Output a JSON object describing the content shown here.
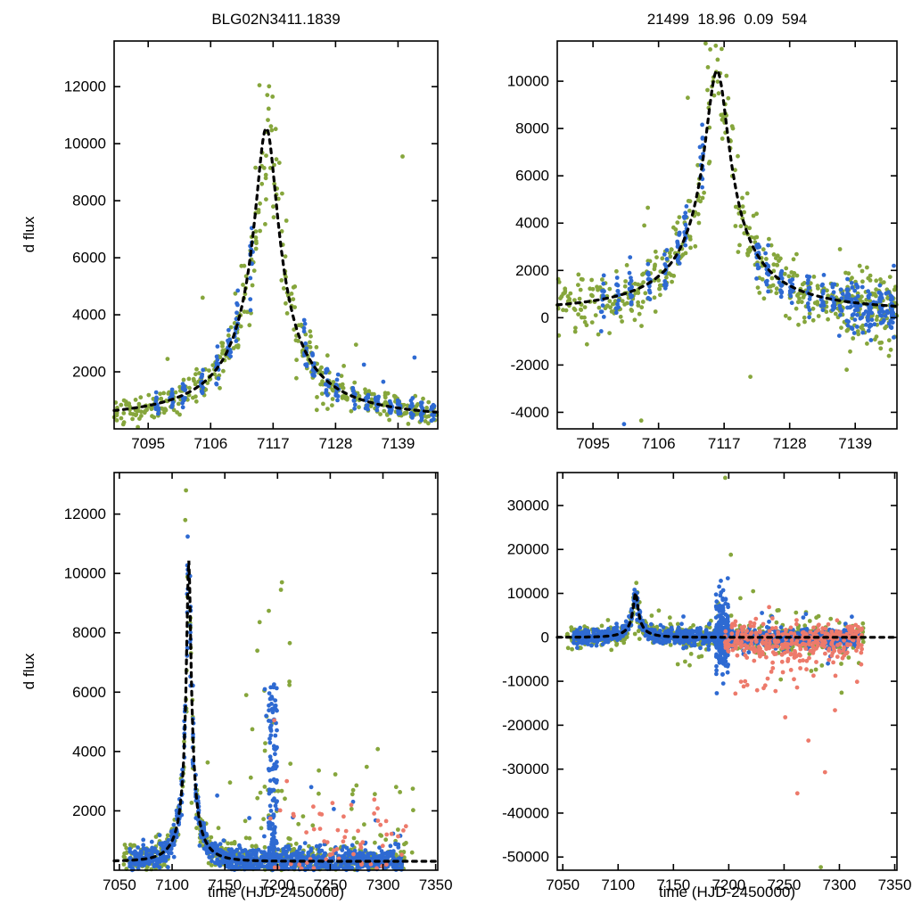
{
  "colors": {
    "green": "#86a63c",
    "blue": "#2e6ad2",
    "red": "#ed7a6b",
    "model": "#000000"
  },
  "chart_data": [
    {
      "id": "top-left",
      "type": "scatter",
      "title": "BLG02N3411.1839",
      "xlabel": "",
      "ylabel": "d flux",
      "xlim": [
        7089,
        7146
      ],
      "ylim": [
        0,
        13600
      ],
      "xticks": [
        7095,
        7106,
        7117,
        7128,
        7139
      ],
      "yticks": [
        2000,
        4000,
        6000,
        8000,
        10000,
        12000
      ],
      "grid": false,
      "legend": false,
      "model": {
        "t0": 7115.8,
        "tE": 23,
        "u0": 0.09,
        "fs": 1000,
        "baseline": 400,
        "show": true
      },
      "clusters": [
        {
          "color": "green",
          "mode": "model",
          "tmin": 7089,
          "tmax": 7146,
          "epochs": 55,
          "per": 7,
          "jt": 0.55,
          "rel": 0.13,
          "abs": 260,
          "seed": 101
        },
        {
          "color": "green",
          "mode": "model",
          "tmin": 7106,
          "tmax": 7126,
          "epochs": 11,
          "per": 3,
          "jt": 0.7,
          "rel": 0.28,
          "abs": 280,
          "seed": 102
        },
        {
          "color": "green",
          "mode": "points",
          "values": [
            [
              7114.6,
              12050
            ],
            [
              7116.9,
              11650
            ],
            [
              7139.8,
              9550
            ],
            [
              7104.6,
              4600
            ],
            [
              7131.6,
              2950
            ],
            [
              7098.4,
              2450
            ]
          ]
        },
        {
          "color": "blue",
          "mode": "model",
          "nights": [
            7096.6,
            7099.1,
            7101.3,
            7104.4,
            7107.2,
            7109.3,
            7110.5,
            7113.2,
            7122.7,
            7124.2,
            7126.5,
            7128.3,
            7131.2,
            7133.5,
            7135.3,
            7137.7,
            7139.2,
            7141.4,
            7143.3,
            7145.1
          ],
          "per": 13,
          "jt": 0.28,
          "rel": 0.11,
          "abs": 170,
          "seed": 103
        },
        {
          "color": "blue",
          "mode": "points",
          "values": [
            [
              7133.0,
              2250
            ],
            [
              7141.9,
              2500
            ],
            [
              7136.4,
              1650
            ]
          ]
        }
      ]
    },
    {
      "id": "top-right",
      "type": "scatter",
      "title": "21499  18.96  0.09  594",
      "xlabel": "",
      "ylabel": "",
      "xlim": [
        7089,
        7146
      ],
      "ylim": [
        -4700,
        11700
      ],
      "xticks": [
        7095,
        7106,
        7117,
        7128,
        7139
      ],
      "yticks": [
        -4000,
        -2000,
        0,
        2000,
        4000,
        6000,
        8000,
        10000
      ],
      "grid": false,
      "legend": false,
      "model": {
        "t0": 7115.8,
        "tE": 23,
        "u0": 0.09,
        "fs": 1000,
        "baseline": 300,
        "show": true
      },
      "clusters": [
        {
          "color": "green",
          "mode": "model",
          "tmin": 7089,
          "tmax": 7146,
          "epochs": 55,
          "per": 8,
          "jt": 0.55,
          "rel": 0.13,
          "abs": 620,
          "seed": 201
        },
        {
          "color": "green",
          "mode": "model",
          "tmin": 7089,
          "tmax": 7146,
          "epochs": 16,
          "per": 1,
          "jt": 0.5,
          "rel": 0.12,
          "abs": 1500,
          "seed": 202
        },
        {
          "color": "green",
          "mode": "flat",
          "tmin": 7135.5,
          "tmax": 7146,
          "epochs": 11,
          "per": 6,
          "jt": 0.5,
          "base": 250,
          "abs": 900,
          "seed": 203
        },
        {
          "color": "green",
          "mode": "points",
          "values": [
            [
              7103.1,
              -4350
            ],
            [
              7113.9,
              11600
            ],
            [
              7115.6,
              11500
            ],
            [
              7110.9,
              9300
            ],
            [
              7121.4,
              -2500
            ],
            [
              7104.2,
              4650
            ],
            [
              7103.6,
              3900
            ]
          ]
        },
        {
          "color": "blue",
          "mode": "model",
          "nights": [
            7096.6,
            7099.1,
            7101.3,
            7104.4,
            7107.2,
            7109.3,
            7110.5,
            7113.2,
            7122.7,
            7124.2,
            7126.5,
            7128.3,
            7131.2,
            7133.5,
            7135.3,
            7137.7,
            7139.2,
            7141.4,
            7143.3,
            7145.1
          ],
          "per": 14,
          "jt": 0.28,
          "rel": 0.12,
          "abs": 430,
          "seed": 204
        },
        {
          "color": "blue",
          "mode": "flat",
          "tmin": 7136,
          "tmax": 7146,
          "epochs": 9,
          "per": 8,
          "jt": 0.5,
          "base": 250,
          "abs": 600,
          "seed": 205
        },
        {
          "color": "blue",
          "mode": "points",
          "values": [
            [
              7100.2,
              -4500
            ]
          ]
        }
      ]
    },
    {
      "id": "bottom-left",
      "type": "scatter",
      "title": "",
      "xlabel": "time (HJD-2450000)",
      "ylabel": "d flux",
      "xlim": [
        7045,
        7352
      ],
      "ylim": [
        0,
        13400
      ],
      "xticks": [
        7050,
        7100,
        7150,
        7200,
        7250,
        7300,
        7350
      ],
      "yticks": [
        2000,
        4000,
        6000,
        8000,
        10000,
        12000
      ],
      "grid": false,
      "legend": false,
      "model": {
        "t0": 7115.8,
        "tE": 23,
        "u0": 0.09,
        "fs": 1000,
        "baseline": 300,
        "show": true
      },
      "clusters": [
        {
          "color": "green",
          "mode": "model",
          "tmin": 7053,
          "tmax": 7322,
          "epochs": 90,
          "per": 6,
          "jt": 0.7,
          "rel": 0.13,
          "abs": 300,
          "seed": 301
        },
        {
          "color": "green",
          "mode": "uniform",
          "tmin": 7118,
          "tmax": 7330,
          "n": 45,
          "ymin": 500,
          "ymax": 4200,
          "pow": 2.0,
          "seed": 302
        },
        {
          "color": "green",
          "mode": "uniform",
          "tmin": 7174,
          "tmax": 7214,
          "n": 26,
          "ymin": 800,
          "ymax": 9600,
          "pow": 2.2,
          "seed": 303
        },
        {
          "color": "green",
          "mode": "points",
          "values": [
            [
              7113.2,
              12800
            ],
            [
              7112.5,
              11800
            ],
            [
              7170.3,
              5900
            ],
            [
              7176.1,
              4750
            ],
            [
              7204.2,
              9700
            ],
            [
              7187.5,
              6050
            ]
          ]
        },
        {
          "color": "blue",
          "mode": "model",
          "tmin": 7060,
          "tmax": 7320,
          "step": 2.6,
          "per": 10,
          "jt": 0.45,
          "rel": 0.12,
          "abs": 210,
          "seed": 304
        },
        {
          "color": "blue",
          "mode": "uniform",
          "tmin": 7191.5,
          "tmax": 7199.5,
          "n": 150,
          "ymin": 60,
          "ymax": 6300,
          "pow": 1.7,
          "seed": 305
        },
        {
          "color": "blue",
          "mode": "uniform",
          "tmin": 7125,
          "tmax": 7320,
          "n": 28,
          "ymin": 500,
          "ymax": 3000,
          "pow": 1.8,
          "seed": 306
        },
        {
          "color": "blue",
          "mode": "points",
          "values": [
            [
              7187.9,
              6100
            ],
            [
              7189.3,
              5200
            ]
          ]
        },
        {
          "color": "red",
          "mode": "uniform",
          "tmin": 7193,
          "tmax": 7322,
          "n": 55,
          "ymin": 60,
          "ymax": 2400,
          "pow": 2.2,
          "seed": 307
        },
        {
          "color": "red",
          "mode": "points",
          "values": [
            [
              7196.9,
              5050
            ],
            [
              7208.8,
              3000
            ],
            [
              7240.0,
              1900
            ],
            [
              7270.0,
              2200
            ]
          ]
        }
      ]
    },
    {
      "id": "bottom-right",
      "type": "scatter",
      "title": "",
      "xlabel": "time (HJD-2450000)",
      "ylabel": "",
      "xlim": [
        7045,
        7352
      ],
      "ylim": [
        -53000,
        37500
      ],
      "xticks": [
        7050,
        7100,
        7150,
        7200,
        7250,
        7300,
        7350
      ],
      "yticks": [
        -50000,
        -40000,
        -30000,
        -20000,
        -10000,
        0,
        10000,
        20000,
        30000
      ],
      "grid": false,
      "legend": false,
      "model": {
        "t0": 7115.8,
        "tE": 23,
        "u0": 0.09,
        "fs": 1000,
        "baseline": 0,
        "show": true
      },
      "clusters": [
        {
          "color": "green",
          "mode": "model",
          "tmin": 7053,
          "tmax": 7322,
          "epochs": 90,
          "per": 6,
          "jt": 0.7,
          "rel": 0.2,
          "abs": 1500,
          "seed": 401
        },
        {
          "color": "green",
          "mode": "uniform",
          "tmin": 7115,
          "tmax": 7325,
          "n": 42,
          "ymin": -8000,
          "ymax": 8000,
          "pow": 1,
          "seed": 402
        },
        {
          "color": "green",
          "mode": "points",
          "values": [
            [
              7196.8,
              36300
            ],
            [
              7201.9,
              18800
            ],
            [
              7283.2,
              -52300
            ],
            [
              7210.5,
              8900
            ],
            [
              7302.0,
              -12600
            ],
            [
              7247.0,
              -9600
            ],
            [
              7222.0,
              10500
            ]
          ]
        },
        {
          "color": "blue",
          "mode": "model",
          "tmin": 7060,
          "tmax": 7320,
          "step": 2.6,
          "per": 10,
          "jt": 0.45,
          "rel": 0.12,
          "abs": 900,
          "seed": 403
        },
        {
          "color": "blue",
          "mode": "flat",
          "tmin": 7188,
          "tmax": 7200,
          "epochs": 6,
          "per": 30,
          "jt": 0.4,
          "base": 0,
          "abs": 4200,
          "seed": 404
        },
        {
          "color": "blue",
          "mode": "uniform",
          "tmin": 7150,
          "tmax": 7320,
          "n": 30,
          "ymin": -6000,
          "ymax": 6000,
          "pow": 1,
          "seed": 405
        },
        {
          "color": "blue",
          "mode": "points",
          "values": [
            [
              7195.0,
              -10500
            ],
            [
              7193.0,
              10200
            ]
          ]
        },
        {
          "color": "red",
          "mode": "flat",
          "tmin": 7196,
          "tmax": 7322,
          "epochs": 45,
          "per": 7,
          "jt": 0.6,
          "base": -900,
          "abs": 2100,
          "seed": 406
        },
        {
          "color": "red",
          "mode": "uniform",
          "tmin": 7200,
          "tmax": 7320,
          "n": 24,
          "ymin": -14000,
          "ymax": -2500,
          "pow": 1,
          "seed": 407
        },
        {
          "color": "red",
          "mode": "points",
          "values": [
            [
              7262.0,
              -35500
            ],
            [
              7287.0,
              -30700
            ],
            [
              7272.0,
              -23500
            ],
            [
              7251.0,
              -18200
            ],
            [
              7296.0,
              -16600
            ],
            [
              7206.0,
              -12800
            ]
          ]
        }
      ]
    }
  ]
}
